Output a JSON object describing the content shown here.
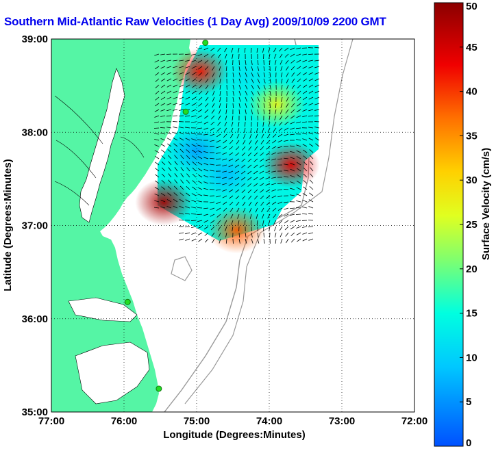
{
  "title": "Southern Mid-Atlantic Raw Velocities (1 Day Avg) 2009/10/09 2200 GMT",
  "x_axis": {
    "label": "Longitude (Degrees:Minutes)",
    "ticks": [
      {
        "value": -77,
        "label": "77:00"
      },
      {
        "value": -76,
        "label": "76:00"
      },
      {
        "value": -75,
        "label": "75:00"
      },
      {
        "value": -74,
        "label": "74:00"
      },
      {
        "value": -73,
        "label": "73:00"
      },
      {
        "value": -72,
        "label": "72:00"
      }
    ],
    "range": [
      -77,
      -72
    ]
  },
  "y_axis": {
    "label": "Latitude (Degrees:Minutes)",
    "ticks": [
      {
        "value": 35,
        "label": "35:00"
      },
      {
        "value": 36,
        "label": "36:00"
      },
      {
        "value": 37,
        "label": "37:00"
      },
      {
        "value": 38,
        "label": "38:00"
      },
      {
        "value": 39,
        "label": "39:00"
      }
    ],
    "range": [
      35,
      39
    ]
  },
  "colorbar": {
    "label": "Surface Velocity (cm/s)",
    "range": [
      0,
      50
    ],
    "ticks": [
      {
        "value": 0,
        "label": "0"
      },
      {
        "value": 5,
        "label": "5"
      },
      {
        "value": 10,
        "label": "10"
      },
      {
        "value": 15,
        "label": "15"
      },
      {
        "value": 20,
        "label": "20"
      },
      {
        "value": 25,
        "label": "25"
      },
      {
        "value": 30,
        "label": "30"
      },
      {
        "value": 35,
        "label": "35"
      },
      {
        "value": 40,
        "label": "40"
      },
      {
        "value": 45,
        "label": "45"
      },
      {
        "value": 50,
        "label": "50"
      }
    ]
  },
  "colors": {
    "land": "#55f5a5",
    "water": "#ffffff",
    "arrow": "#000000",
    "station": "#22dd22",
    "bathymetry": "#999999",
    "title": "#0000ee"
  },
  "stations": [
    {
      "lon": -74.88,
      "lat": 38.96
    },
    {
      "lon": -75.15,
      "lat": 38.22
    },
    {
      "lon": -75.95,
      "lat": 36.18
    },
    {
      "lon": -75.52,
      "lat": 35.25
    }
  ],
  "velocity_patches": [
    {
      "lon": -75.45,
      "lat": 37.25,
      "speed": 48
    },
    {
      "lon": -74.45,
      "lat": 36.95,
      "speed": 38
    },
    {
      "lon": -73.7,
      "lat": 37.65,
      "speed": 44
    },
    {
      "lon": -74.95,
      "lat": 38.65,
      "speed": 42
    },
    {
      "lon": -73.9,
      "lat": 38.3,
      "speed": 27
    },
    {
      "lon": -74.6,
      "lat": 37.55,
      "speed": 8
    },
    {
      "lon": -75.0,
      "lat": 37.8,
      "speed": 6
    },
    {
      "lon": -74.3,
      "lat": 38.6,
      "speed": 12
    }
  ]
}
